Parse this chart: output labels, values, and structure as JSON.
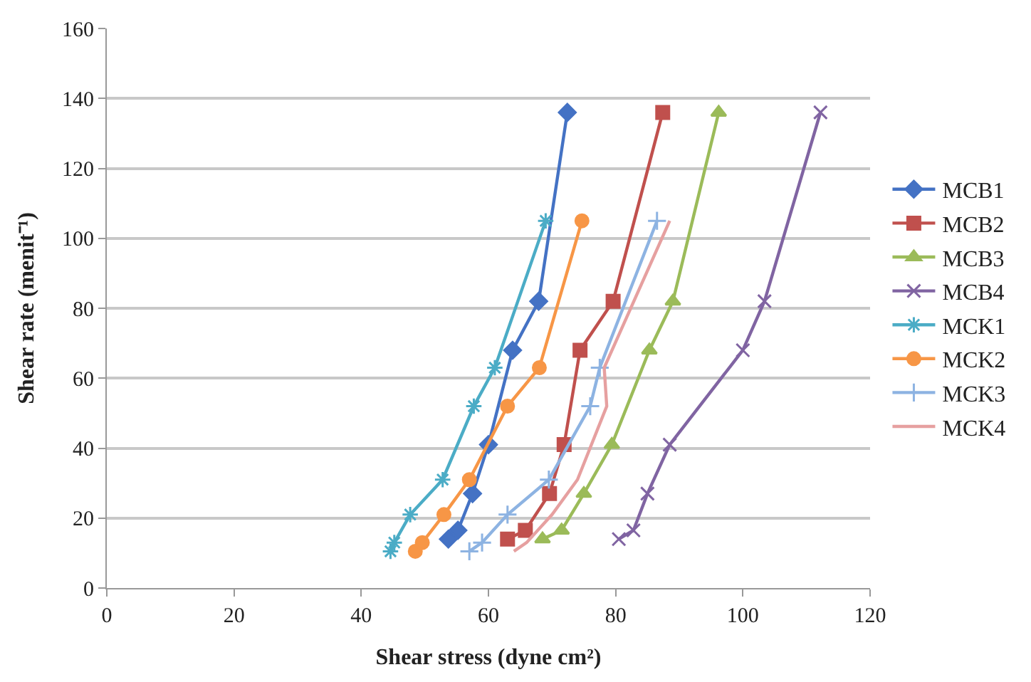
{
  "chart_data": {
    "type": "line",
    "xlabel": "Shear stress (dyne cm²)",
    "ylabel": "Shear rate (menit⁻¹)",
    "xlim": [
      0,
      120
    ],
    "xticks": [
      0,
      20,
      40,
      60,
      80,
      100,
      120
    ],
    "ylim": [
      0,
      160
    ],
    "yticks": [
      0,
      20,
      40,
      60,
      80,
      100,
      120,
      140,
      160
    ],
    "grid": "y",
    "legend": "right",
    "line_style": "solid",
    "series": [
      {
        "name": "MCB1",
        "color": "#4472c4",
        "marker": "diamond",
        "x": [
          53.7,
          55.2,
          57.5,
          60,
          63.8,
          67.9,
          72.4
        ],
        "values": [
          14,
          16.5,
          27,
          41,
          68,
          82,
          136
        ]
      },
      {
        "name": "MCB2",
        "color": "#c0504d",
        "marker": "square",
        "x": [
          63,
          65.8,
          69.6,
          71.9,
          74.4,
          79.6,
          87.4
        ],
        "values": [
          14,
          16.5,
          27,
          41,
          68,
          82,
          136
        ]
      },
      {
        "name": "MCB3",
        "color": "#9bbb59",
        "marker": "triangle",
        "x": [
          68.5,
          71.5,
          75,
          79.4,
          85.3,
          89,
          96.2
        ],
        "values": [
          14,
          16.5,
          27,
          41,
          68,
          82,
          136
        ]
      },
      {
        "name": "MCB4",
        "color": "#8064a2",
        "marker": "x",
        "x": [
          80.5,
          82.8,
          85,
          88.5,
          100,
          103.4,
          112.2
        ],
        "values": [
          14,
          16.5,
          27,
          41,
          68,
          82,
          136
        ]
      },
      {
        "name": "MCK1",
        "color": "#4bacc6",
        "marker": "cross",
        "x": [
          44.6,
          45.2,
          47.7,
          52.8,
          57.7,
          61,
          69
        ],
        "values": [
          10.5,
          13,
          21,
          31,
          52,
          63,
          105
        ]
      },
      {
        "name": "MCK2",
        "color": "#f79646",
        "marker": "circle",
        "x": [
          48.5,
          49.6,
          53,
          57,
          63,
          68,
          74.7
        ],
        "values": [
          10.5,
          13,
          21,
          31,
          52,
          63,
          105
        ]
      },
      {
        "name": "MCK3",
        "color": "#8db3e2",
        "marker": "plus",
        "x": [
          57,
          59,
          63,
          69.5,
          76,
          77.5,
          86.5
        ],
        "values": [
          10.5,
          13,
          21,
          31,
          52,
          63,
          105
        ]
      },
      {
        "name": "MCK4",
        "color": "#e6a0a0",
        "marker": "none",
        "x": [
          64,
          66,
          70,
          74,
          78.6,
          78.2,
          88.5
        ],
        "values": [
          10.5,
          13,
          21,
          31,
          52,
          63,
          105
        ]
      }
    ]
  }
}
